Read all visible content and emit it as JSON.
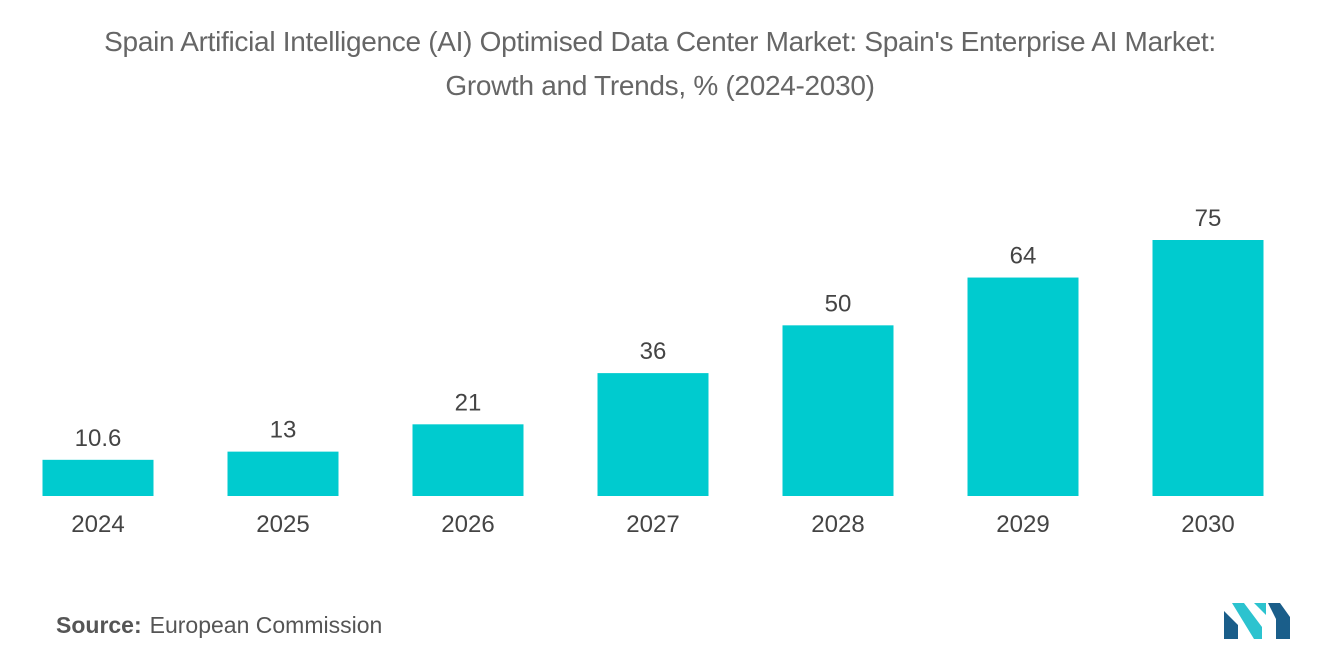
{
  "title": {
    "line1": "Spain Artificial Intelligence (AI) Optimised Data Center Market: Spain's Enterprise AI Market:",
    "line2": "Growth and Trends, % (2024-2030)"
  },
  "source": {
    "label": "Source:",
    "text": "European Commission"
  },
  "colors": {
    "bar": "#00CBCF",
    "text": "#444444",
    "title": "#666666",
    "logo_dark": "#1A5E8A",
    "logo_light": "#2CC3CF"
  },
  "chart_data": {
    "type": "bar",
    "title": "Spain Artificial Intelligence (AI) Optimised Data Center Market: Spain's Enterprise AI Market: Growth and Trends, % (2024-2030)",
    "categories": [
      "2024",
      "2025",
      "2026",
      "2027",
      "2028",
      "2029",
      "2030"
    ],
    "values": [
      10.6,
      13,
      21,
      36,
      50,
      64,
      75
    ],
    "data_labels": [
      "10.6",
      "13",
      "21",
      "36",
      "50",
      "64",
      "75"
    ],
    "xlabel": "",
    "ylabel": "",
    "ylim": [
      0,
      75
    ],
    "grid": false,
    "legend": "none"
  }
}
